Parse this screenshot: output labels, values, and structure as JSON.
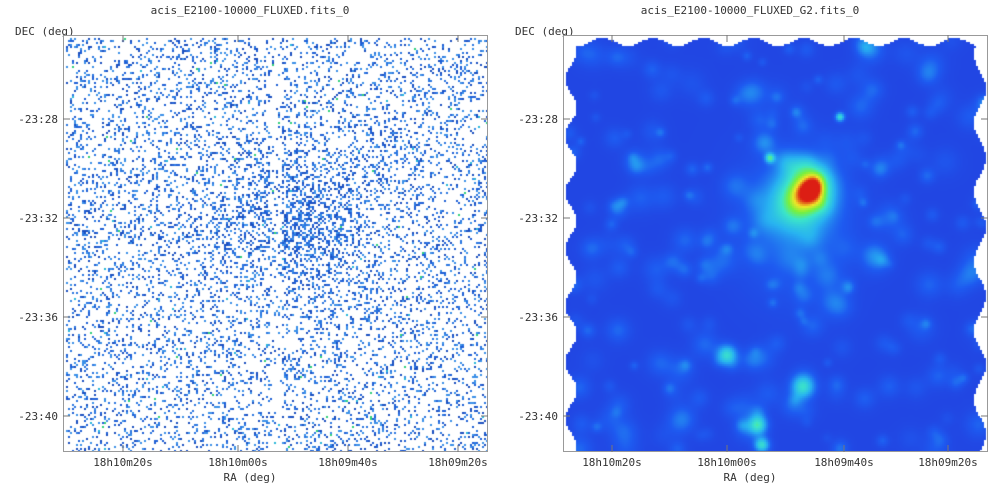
{
  "panels": [
    {
      "title": "acis_E2100-10000_FLUXED.fits_0",
      "y_axis_label": "DEC (deg)",
      "x_axis_label": "RA (deg)",
      "y_ticks": [
        "-23:28",
        "-23:32",
        "-23:36",
        "-23:40"
      ],
      "x_ticks": [
        "18h10m20s",
        "18h10m00s",
        "18h09m40s",
        "18h09m20s"
      ],
      "colormap": "sparse-counts",
      "colors": {
        "background": "#ffffff",
        "low": "#1e5fd6",
        "mid": "#27b6d8",
        "high": "#2fd07a"
      }
    },
    {
      "title": "acis_E2100-10000_FLUXED_G2.fits_0",
      "y_axis_label": "DEC (deg)",
      "x_axis_label": "RA (deg)",
      "y_ticks": [
        "-23:28",
        "-23:32",
        "-23:36",
        "-23:40"
      ],
      "x_ticks": [
        "18h10m20s",
        "18h10m00s",
        "18h09m40s",
        "18h09m20s"
      ],
      "colormap": "smoothed-rainbow",
      "colors": {
        "low": "#2020d0",
        "mid": "#2ad0f0",
        "high": "#e02010"
      }
    }
  ]
}
